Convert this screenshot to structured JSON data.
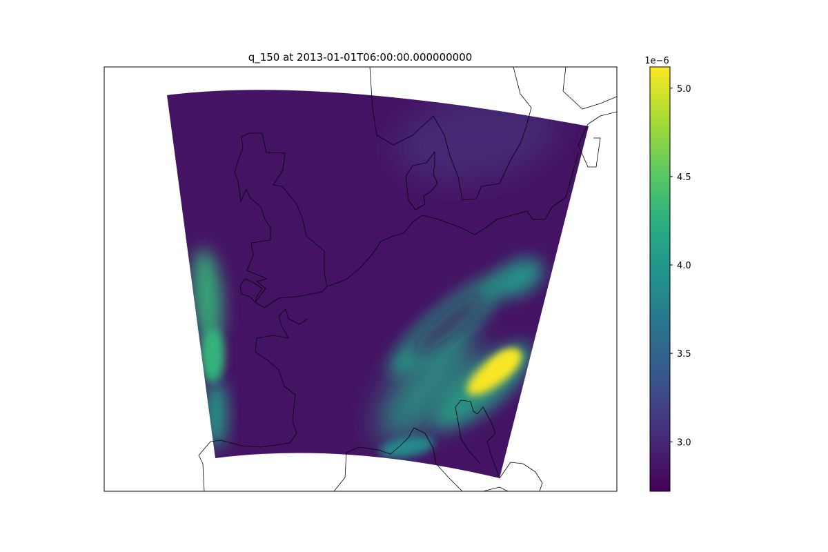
{
  "chart_data": {
    "type": "heatmap",
    "title": "q_150 at 2013-01-01T06:00:00.000000000",
    "xlabel": "",
    "ylabel": "",
    "colormap": "viridis",
    "colorbar": {
      "multiplier_label": "1e−6",
      "min": 2.72,
      "max": 5.12,
      "ticks": [
        3.0,
        3.5,
        4.0,
        4.5,
        5.0
      ],
      "tick_labels": [
        "3.0",
        "3.5",
        "4.0",
        "4.5",
        "5.0"
      ]
    },
    "field_description_values": {
      "background_level": 2.85,
      "features": [
        {
          "region": "south-east core",
          "value": 5.1
        },
        {
          "region": "south-east band",
          "value": 4.1
        },
        {
          "region": "east patch",
          "value": 4.0
        },
        {
          "region": "west edge",
          "value": 4.3
        },
        {
          "region": "south-west edge",
          "value": 4.1
        },
        {
          "region": "south coast",
          "value": 3.9
        },
        {
          "region": "north-east",
          "value": 3.1
        }
      ]
    },
    "map": {
      "projection": "rotated lat-lon domain",
      "coastlines": true,
      "gridlines": false,
      "coastline_color": "#000000"
    }
  }
}
